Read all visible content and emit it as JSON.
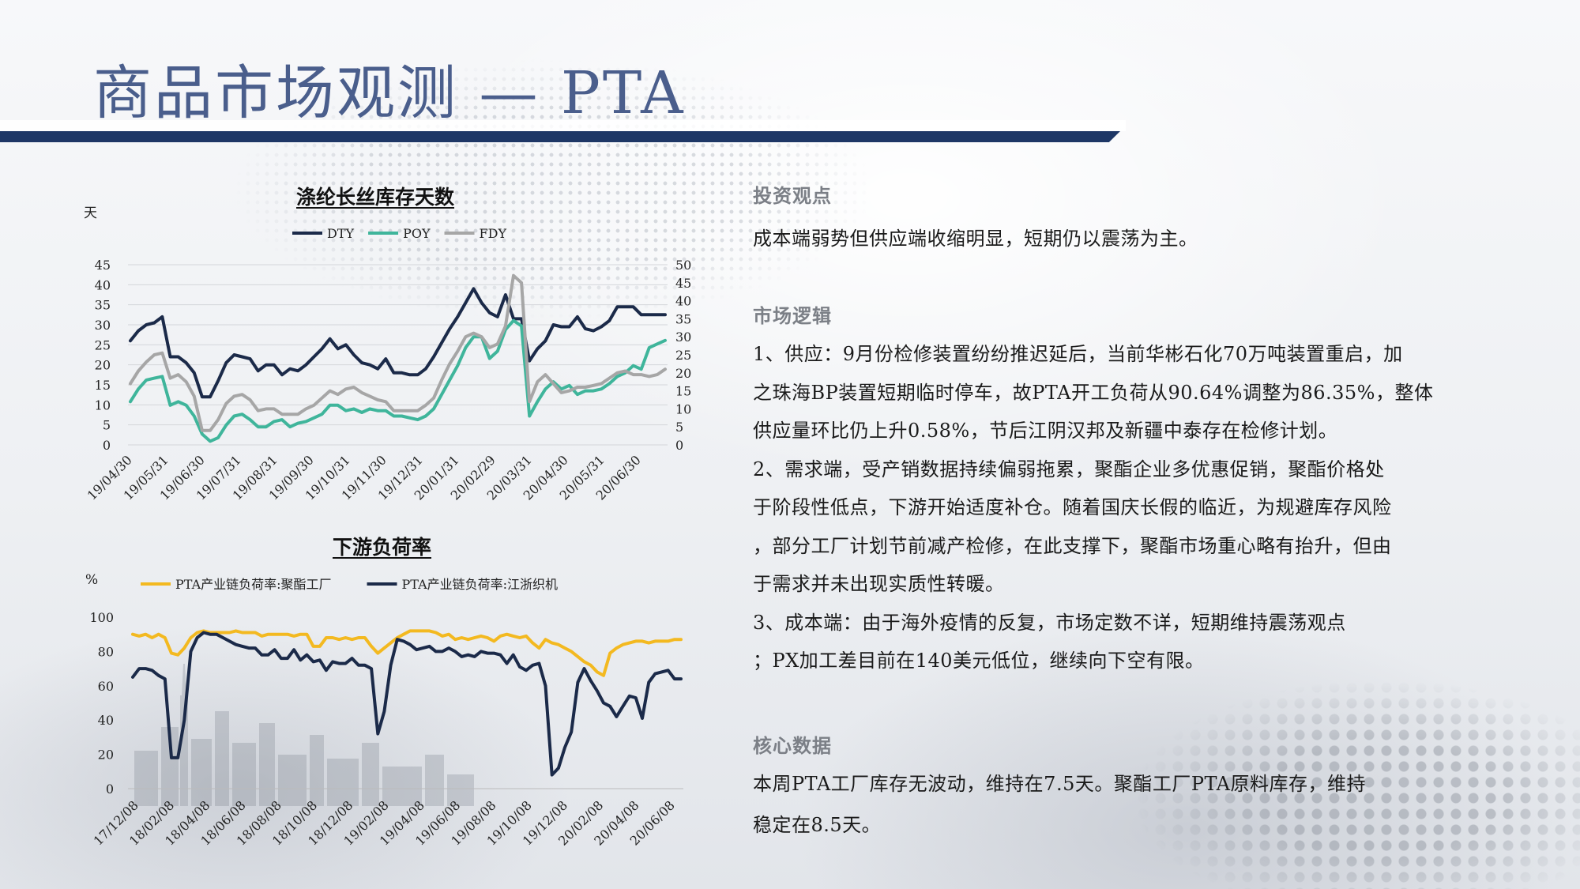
{
  "slide": {
    "title": "商品市场观测 — PTA"
  },
  "chart_data": [
    {
      "type": "line",
      "title": "涤纶长丝库存天数",
      "ylabel": "天",
      "legend_position": "top",
      "grid": true,
      "ylim": [
        0,
        45
      ],
      "y_ticks": [
        "45",
        "40",
        "35",
        "30",
        "25",
        "20",
        "15",
        "10",
        "5",
        "0"
      ],
      "y2lim": [
        0,
        50
      ],
      "y2_ticks": [
        "50",
        "45",
        "40",
        "35",
        "30",
        "25",
        "20",
        "15",
        "10",
        "5",
        "0"
      ],
      "x_tick_labels": [
        "19/04/30",
        "19/05/31",
        "19/06/30",
        "19/07/31",
        "19/08/31",
        "19/09/30",
        "19/10/31",
        "19/11/30",
        "19/12/31",
        "20/01/31",
        "20/02/29",
        "20/03/31",
        "20/04/30",
        "20/05/31",
        "20/06/30"
      ],
      "series": [
        {
          "name": "DTY",
          "color": "#1b2a49",
          "axis": "left",
          "values": [
            26,
            28.5,
            30,
            30.5,
            32,
            22,
            22,
            20.5,
            18,
            12,
            12,
            16,
            20.5,
            22.5,
            22,
            21.5,
            18.5,
            20,
            20,
            17.5,
            19,
            18.5,
            20,
            22,
            24,
            26.5,
            24,
            25,
            22.5,
            20.5,
            20,
            19,
            21.5,
            18,
            18,
            17.5,
            17.5,
            19,
            22,
            25.5,
            29,
            32,
            35.5,
            39,
            35.5,
            33,
            32,
            37.5,
            31.5,
            31.5,
            21,
            24,
            26,
            30,
            29.5,
            29.5,
            32,
            29,
            28.5,
            29.5,
            31,
            34.5,
            34.5,
            34.5,
            32.5,
            32.5,
            32.5,
            32.5
          ]
        },
        {
          "name": "POY",
          "color": "#3fb59b",
          "axis": "right",
          "values": [
            12,
            15.5,
            18,
            18.5,
            19,
            11,
            12,
            11,
            8,
            3,
            1,
            2,
            5.5,
            8,
            8.5,
            7,
            5,
            5,
            6.5,
            7,
            5,
            6,
            6.5,
            7.5,
            8.5,
            11,
            11,
            9.5,
            10,
            9,
            10,
            9.5,
            9.5,
            8,
            8,
            7.5,
            7,
            8,
            10,
            14,
            18,
            22,
            27,
            30,
            30,
            24,
            26,
            32,
            34.5,
            33,
            8,
            12,
            15.5,
            17.5,
            15.5,
            16.5,
            14,
            15,
            15,
            15.5,
            17,
            19,
            20,
            22,
            21,
            27,
            28,
            29
          ]
        },
        {
          "name": "FDY",
          "color": "#a6a6a6",
          "axis": "right",
          "values": [
            17,
            20.5,
            23,
            25,
            25.5,
            18.5,
            19.5,
            17.5,
            13.5,
            4,
            4,
            7,
            11.5,
            13.5,
            14,
            12.5,
            9.5,
            10,
            10,
            8.5,
            8.5,
            8.5,
            10,
            11,
            13,
            15,
            14,
            15.5,
            16,
            14.5,
            13.5,
            12.5,
            12,
            9.5,
            9.5,
            9.5,
            9.5,
            11,
            13,
            18,
            22.5,
            26,
            30,
            31,
            30,
            27,
            28,
            33,
            47,
            45,
            12,
            17.5,
            19.5,
            17,
            14.5,
            15,
            16,
            16,
            16.5,
            17,
            18.5,
            20,
            20.5,
            19.5,
            19.5,
            19,
            19.5,
            21
          ]
        }
      ]
    },
    {
      "type": "line",
      "title": "下游负荷率",
      "ylabel": "%",
      "legend_position": "top",
      "grid": false,
      "ylim": [
        0,
        100
      ],
      "y_ticks": [
        "100",
        "80",
        "60",
        "40",
        "20",
        "0"
      ],
      "x_tick_labels": [
        "17/12/08",
        "18/02/08",
        "18/04/08",
        "18/06/08",
        "18/08/08",
        "18/10/08",
        "18/12/08",
        "19/02/08",
        "19/04/08",
        "19/06/08",
        "19/08/08",
        "19/10/08",
        "19/12/08",
        "20/02/08",
        "20/04/08",
        "20/06/08"
      ],
      "series": [
        {
          "name": "PTA产业链负荷率:聚酯工厂",
          "color": "#f3b920",
          "values": [
            90,
            89,
            90,
            88,
            90,
            88,
            79,
            78,
            82,
            88,
            91,
            92,
            91,
            91,
            91,
            91,
            92,
            91,
            91,
            91,
            89,
            90,
            90,
            90,
            90,
            89,
            90,
            90,
            83,
            83,
            88,
            88,
            87,
            88,
            87,
            88,
            88,
            83,
            79,
            82,
            85,
            88,
            90,
            92,
            92,
            92,
            92,
            91,
            89,
            90,
            87,
            88,
            87,
            88,
            89,
            88,
            86,
            89,
            90,
            89,
            88,
            89,
            85,
            82,
            87,
            85,
            84,
            82,
            80,
            77,
            74,
            72,
            68,
            66,
            79,
            82,
            84,
            85,
            86,
            86,
            85,
            86,
            86,
            86,
            87,
            87
          ]
        },
        {
          "name": "PTA产业链负荷率:江浙织机",
          "color": "#1b2a49",
          "values": [
            65,
            70,
            70,
            69,
            66,
            64,
            18,
            18,
            40,
            80,
            88,
            91,
            90,
            90,
            88,
            86,
            84,
            83,
            82,
            82,
            78,
            78,
            81,
            76,
            76,
            81,
            75,
            78,
            74,
            75,
            69,
            74,
            73,
            73,
            76,
            72,
            72,
            70,
            32,
            45,
            72,
            87,
            86,
            84,
            81,
            82,
            83,
            80,
            80,
            82,
            80,
            77,
            78,
            77,
            80,
            79,
            79,
            78,
            73,
            78,
            71,
            69,
            72,
            73,
            60,
            8,
            12,
            24,
            33,
            62,
            70,
            63,
            57,
            50,
            48,
            42,
            48,
            54,
            53,
            41,
            62,
            67,
            68,
            69,
            64,
            64
          ]
        }
      ]
    }
  ],
  "right_panel": {
    "invest_heading": "投资观点",
    "invest_text": "成本端弱势但供应端收缩明显，短期仍以震荡为主。",
    "logic_heading": "市场逻辑",
    "logic_lines": [
      "1、供应：9月份检修装置纷纷推迟延后，当前华彬石化70万吨装置重启，加",
      "之珠海BP装置短期临时停车，故PTA开工负荷从90.64%调整为86.35%，整体",
      "供应量环比仍上升0.58%，节后江阴汉邦及新疆中泰存在检修计划。",
      "2、需求端，受产销数据持续偏弱拖累，聚酯企业多优惠促销，聚酯价格处",
      "于阶段性低点，下游开始适度补仓。随着国庆长假的临近，为规避库存风险",
      "，部分工厂计划节前减产检修，在此支撑下，聚酯市场重心略有抬升，但由",
      "于需求并未出现实质性转暖。",
      "3、成本端：由于海外疫情的反复，市场定数不详，短期维持震荡观点",
      "；PX加工差目前在140美元低位，继续向下空有限。"
    ],
    "core_heading": "核心数据",
    "core_lines": [
      "本周PTA工厂库存无波动，维持在7.5天。聚酯工厂PTA原料库存，维持",
      "稳定在8.5天。"
    ]
  }
}
